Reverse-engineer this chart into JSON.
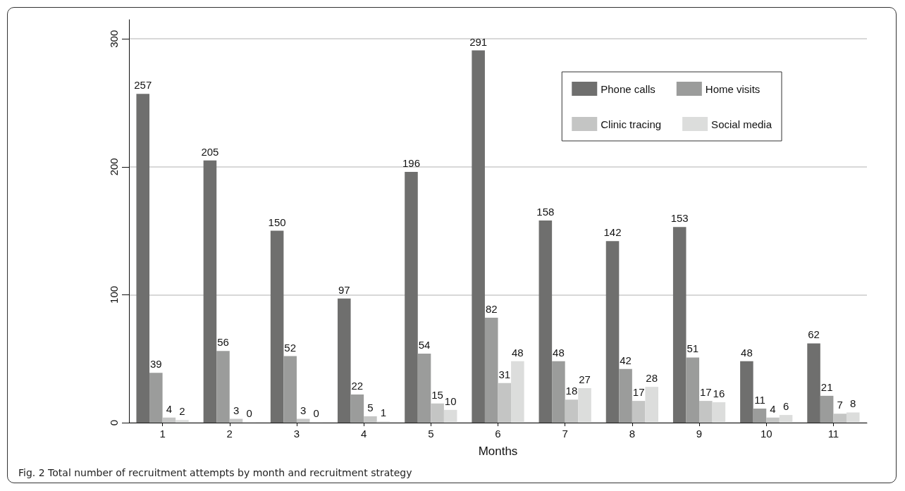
{
  "chart_data": {
    "type": "bar",
    "xlabel": "Months",
    "categories": [
      "1",
      "2",
      "3",
      "4",
      "5",
      "6",
      "7",
      "8",
      "9",
      "10",
      "11"
    ],
    "series": [
      {
        "name": "Phone calls",
        "color": "#6f6f6e",
        "values": [
          257,
          205,
          150,
          97,
          196,
          291,
          158,
          142,
          153,
          48,
          62
        ]
      },
      {
        "name": "Home visits",
        "color": "#9b9c9b",
        "values": [
          39,
          56,
          52,
          22,
          54,
          82,
          48,
          42,
          51,
          11,
          21
        ]
      },
      {
        "name": "Clinic tracing",
        "color": "#c4c5c4",
        "values": [
          4,
          3,
          3,
          5,
          15,
          31,
          18,
          17,
          17,
          4,
          7
        ]
      },
      {
        "name": "Social media",
        "color": "#dcdddc",
        "values": [
          2,
          0,
          0,
          1,
          10,
          48,
          27,
          28,
          16,
          6,
          8
        ]
      }
    ],
    "ylim": [
      0,
      315
    ],
    "yticks": [
      0,
      100,
      200,
      300
    ],
    "grid": "y",
    "legend": "top right",
    "data_labels": true,
    "annotations": [
      "Fig. 2  Total number of recruitment attempts by month and recruitment strategy"
    ]
  }
}
